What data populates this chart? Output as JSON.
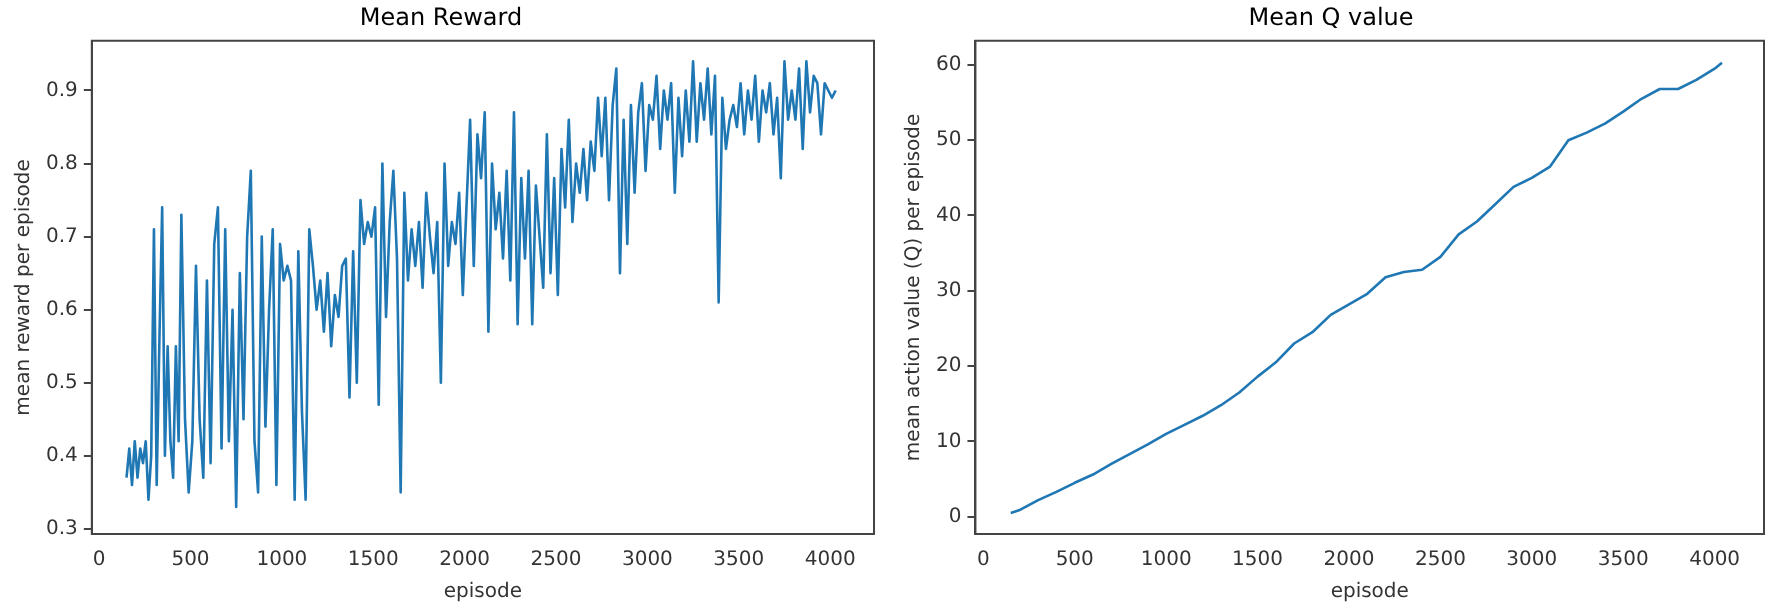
{
  "chart_data": [
    {
      "type": "line",
      "title": "Mean Reward",
      "xlabel": "episode",
      "ylabel": "mean reward per episode",
      "xlim": [
        -40,
        4240
      ],
      "ylim": [
        0.293,
        0.968
      ],
      "xticks": [
        0,
        500,
        1000,
        1500,
        2000,
        2500,
        3000,
        3500,
        4000
      ],
      "yticks": [
        {
          "value": 0.3,
          "label": "0.3"
        },
        {
          "value": 0.4,
          "label": "0.4"
        },
        {
          "value": 0.5,
          "label": "0.5"
        },
        {
          "value": 0.6,
          "label": "0.6"
        },
        {
          "value": 0.7,
          "label": "0.7"
        },
        {
          "value": 0.8,
          "label": "0.8"
        },
        {
          "value": 0.9,
          "label": "0.9"
        }
      ],
      "grid": false,
      "legend": false,
      "marker": "none",
      "line_style": "solid",
      "series": [
        {
          "color": "#1f77b4",
          "x": [
            150,
            165,
            180,
            195,
            210,
            225,
            240,
            255,
            270,
            285,
            300,
            315,
            330,
            345,
            360,
            375,
            390,
            405,
            420,
            435,
            450,
            470,
            490,
            510,
            530,
            550,
            570,
            590,
            610,
            630,
            650,
            670,
            690,
            710,
            730,
            750,
            770,
            790,
            810,
            830,
            850,
            870,
            890,
            910,
            930,
            950,
            970,
            990,
            1010,
            1030,
            1050,
            1070,
            1090,
            1110,
            1130,
            1150,
            1170,
            1190,
            1210,
            1230,
            1250,
            1270,
            1290,
            1310,
            1330,
            1350,
            1370,
            1390,
            1410,
            1430,
            1450,
            1470,
            1490,
            1510,
            1530,
            1550,
            1570,
            1590,
            1610,
            1630,
            1650,
            1670,
            1690,
            1710,
            1730,
            1750,
            1770,
            1790,
            1810,
            1830,
            1850,
            1870,
            1890,
            1910,
            1930,
            1950,
            1970,
            1990,
            2010,
            2030,
            2050,
            2070,
            2090,
            2110,
            2130,
            2150,
            2170,
            2190,
            2210,
            2230,
            2250,
            2270,
            2290,
            2310,
            2330,
            2350,
            2370,
            2390,
            2410,
            2430,
            2450,
            2470,
            2490,
            2510,
            2530,
            2550,
            2570,
            2590,
            2610,
            2630,
            2650,
            2670,
            2690,
            2710,
            2730,
            2750,
            2770,
            2790,
            2810,
            2830,
            2850,
            2870,
            2890,
            2910,
            2930,
            2950,
            2970,
            2990,
            3010,
            3030,
            3050,
            3070,
            3090,
            3110,
            3130,
            3150,
            3170,
            3190,
            3210,
            3230,
            3250,
            3270,
            3290,
            3310,
            3330,
            3350,
            3370,
            3390,
            3410,
            3430,
            3450,
            3470,
            3490,
            3510,
            3530,
            3550,
            3570,
            3590,
            3610,
            3630,
            3650,
            3670,
            3690,
            3710,
            3730,
            3750,
            3770,
            3790,
            3810,
            3830,
            3850,
            3870,
            3890,
            3910,
            3930,
            3950,
            3970,
            3990,
            4010,
            4030
          ],
          "values": [
            0.37,
            0.41,
            0.36,
            0.42,
            0.37,
            0.41,
            0.39,
            0.42,
            0.34,
            0.4,
            0.71,
            0.36,
            0.56,
            0.74,
            0.4,
            0.55,
            0.42,
            0.37,
            0.55,
            0.42,
            0.73,
            0.45,
            0.35,
            0.42,
            0.66,
            0.45,
            0.37,
            0.64,
            0.39,
            0.69,
            0.74,
            0.41,
            0.71,
            0.42,
            0.6,
            0.33,
            0.65,
            0.45,
            0.7,
            0.79,
            0.42,
            0.35,
            0.7,
            0.44,
            0.6,
            0.71,
            0.36,
            0.69,
            0.64,
            0.66,
            0.64,
            0.34,
            0.68,
            0.46,
            0.34,
            0.71,
            0.66,
            0.6,
            0.64,
            0.57,
            0.65,
            0.55,
            0.62,
            0.59,
            0.66,
            0.67,
            0.48,
            0.68,
            0.5,
            0.75,
            0.69,
            0.72,
            0.7,
            0.74,
            0.47,
            0.8,
            0.59,
            0.72,
            0.79,
            0.67,
            0.35,
            0.76,
            0.64,
            0.71,
            0.66,
            0.72,
            0.63,
            0.76,
            0.7,
            0.65,
            0.72,
            0.5,
            0.8,
            0.66,
            0.72,
            0.69,
            0.76,
            0.62,
            0.74,
            0.86,
            0.66,
            0.84,
            0.78,
            0.87,
            0.57,
            0.8,
            0.71,
            0.76,
            0.67,
            0.79,
            0.64,
            0.87,
            0.58,
            0.78,
            0.67,
            0.79,
            0.58,
            0.77,
            0.7,
            0.63,
            0.84,
            0.65,
            0.78,
            0.62,
            0.82,
            0.74,
            0.86,
            0.72,
            0.8,
            0.76,
            0.82,
            0.75,
            0.83,
            0.79,
            0.89,
            0.81,
            0.89,
            0.75,
            0.88,
            0.93,
            0.65,
            0.86,
            0.69,
            0.88,
            0.76,
            0.87,
            0.91,
            0.79,
            0.88,
            0.86,
            0.92,
            0.82,
            0.9,
            0.86,
            0.91,
            0.76,
            0.89,
            0.81,
            0.9,
            0.83,
            0.94,
            0.83,
            0.91,
            0.86,
            0.93,
            0.84,
            0.92,
            0.61,
            0.89,
            0.82,
            0.86,
            0.88,
            0.85,
            0.91,
            0.84,
            0.9,
            0.86,
            0.92,
            0.83,
            0.9,
            0.87,
            0.91,
            0.84,
            0.89,
            0.78,
            0.94,
            0.86,
            0.9,
            0.86,
            0.93,
            0.82,
            0.94,
            0.87,
            0.92,
            0.91,
            0.84,
            0.91,
            0.9,
            0.89,
            0.9
          ]
        }
      ]
    },
    {
      "type": "line",
      "title": "Mean Q value",
      "xlabel": "episode",
      "ylabel": "mean action value (Q) per episode",
      "xlim": [
        -43,
        4270
      ],
      "ylim": [
        -2.3,
        63.2
      ],
      "xticks": [
        0,
        500,
        1000,
        1500,
        2000,
        2500,
        3000,
        3500,
        4000
      ],
      "yticks": [
        0,
        10,
        20,
        30,
        40,
        50,
        60
      ],
      "grid": false,
      "legend": false,
      "marker": "none",
      "line_style": "solid",
      "series": [
        {
          "color": "#1f77b4",
          "x": [
            150,
            200,
            300,
            400,
            500,
            600,
            700,
            800,
            900,
            1000,
            1100,
            1200,
            1300,
            1400,
            1500,
            1600,
            1700,
            1800,
            1900,
            2000,
            2100,
            2200,
            2300,
            2400,
            2500,
            2600,
            2700,
            2800,
            2900,
            3000,
            3100,
            3200,
            3300,
            3400,
            3500,
            3600,
            3700,
            3800,
            3900,
            4000,
            4040
          ],
          "values": [
            0.5,
            0.9,
            2.2,
            3.3,
            4.5,
            5.6,
            7,
            8.3,
            9.6,
            11,
            12.2,
            13.4,
            14.8,
            16.5,
            18.6,
            20.5,
            23,
            24.5,
            26.8,
            28.2,
            29.6,
            31.8,
            32.5,
            32.8,
            34.5,
            37.5,
            39.2,
            41.5,
            43.8,
            45,
            46.5,
            50,
            51,
            52.2,
            53.8,
            55.5,
            56.8,
            56.8,
            58,
            59.5,
            60.3
          ]
        }
      ]
    }
  ]
}
